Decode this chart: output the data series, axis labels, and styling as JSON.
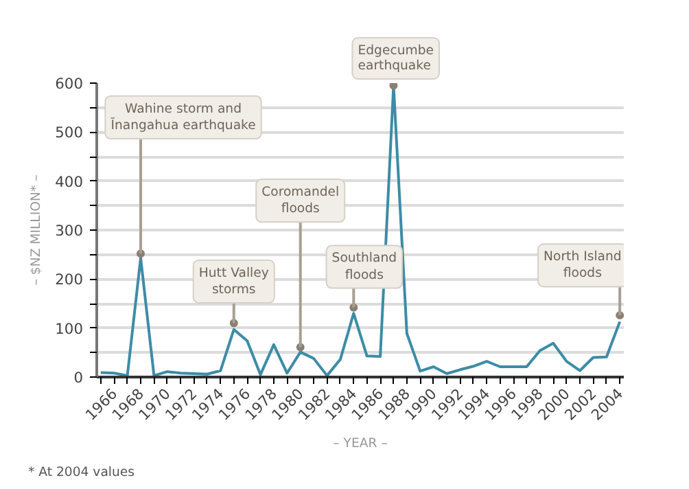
{
  "chart_data": {
    "type": "line",
    "xlabel": "– YEAR –",
    "ylabel": "– $NZ MILLION* –",
    "x": [
      1965,
      1966,
      1967,
      1968,
      1969,
      1970,
      1971,
      1972,
      1973,
      1974,
      1975,
      1976,
      1977,
      1978,
      1979,
      1980,
      1981,
      1982,
      1983,
      1984,
      1985,
      1986,
      1987,
      1988,
      1989,
      1990,
      1991,
      1992,
      1993,
      1994,
      1995,
      1996,
      1997,
      1998,
      1999,
      2000,
      2001,
      2002,
      2003,
      2004
    ],
    "series": [
      {
        "color": "#3d8ca6",
        "values": [
          9,
          8,
          3,
          243,
          3,
          11,
          8,
          7,
          6,
          13,
          97,
          74,
          5,
          66,
          8,
          51,
          38,
          3,
          36,
          130,
          43,
          42,
          595,
          89,
          12,
          21,
          7,
          15,
          22,
          32,
          21,
          21,
          21,
          54,
          69,
          32,
          13,
          40,
          41,
          113
        ]
      }
    ],
    "xlim": [
      1964.7,
      2004.3
    ],
    "ylim": [
      0,
      600
    ],
    "xticks": [
      {
        "value": 1965,
        "label": null
      },
      1966,
      {
        "value": 1967,
        "label": null
      },
      1968,
      {
        "value": 1969,
        "label": null
      },
      1970,
      {
        "value": 1971,
        "label": null
      },
      1972,
      {
        "value": 1973,
        "label": null
      },
      1974,
      {
        "value": 1975,
        "label": null
      },
      1976,
      {
        "value": 1977,
        "label": null
      },
      1978,
      {
        "value": 1979,
        "label": null
      },
      1980,
      {
        "value": 1981,
        "label": null
      },
      1982,
      {
        "value": 1983,
        "label": null
      },
      1984,
      {
        "value": 1985,
        "label": null
      },
      1986,
      {
        "value": 1987,
        "label": null
      },
      1988,
      {
        "value": 1989,
        "label": null
      },
      1990,
      {
        "value": 1991,
        "label": null
      },
      1992,
      {
        "value": 1993,
        "label": null
      },
      1994,
      {
        "value": 1995,
        "label": null
      },
      1996,
      {
        "value": 1997,
        "label": null
      },
      1998,
      {
        "value": 1999,
        "label": null
      },
      2000,
      {
        "value": 2001,
        "label": null
      },
      2002,
      {
        "value": 2003,
        "label": null
      },
      2004
    ],
    "yticks": [
      0,
      {
        "value": 50,
        "label": null
      },
      100,
      {
        "value": 150,
        "label": null
      },
      200,
      {
        "value": 250,
        "label": null
      },
      300,
      {
        "value": 350,
        "label": null
      },
      400,
      {
        "value": 450,
        "label": null
      },
      500,
      {
        "value": 550,
        "label": null
      },
      600
    ],
    "grid": "y",
    "marker": "none",
    "line_style": "solid",
    "annotations": [
      {
        "text": "Wahine storm and\nĪnangahua earthquake",
        "x": 1968,
        "y": 252
      },
      {
        "text": "Hutt Valley\nstorms",
        "x": 1975,
        "y": 110
      },
      {
        "text": "Coromandel\nfloods",
        "x": 1980,
        "y": 61
      },
      {
        "text": "Southland\nfloods",
        "x": 1984,
        "y": 142
      },
      {
        "text": "Edgecumbe\nearthquake",
        "x": 1987,
        "y": 595
      },
      {
        "text": "North Island\nfloods",
        "x": 2004,
        "y": 126
      },
      "* At 2004 values"
    ]
  }
}
